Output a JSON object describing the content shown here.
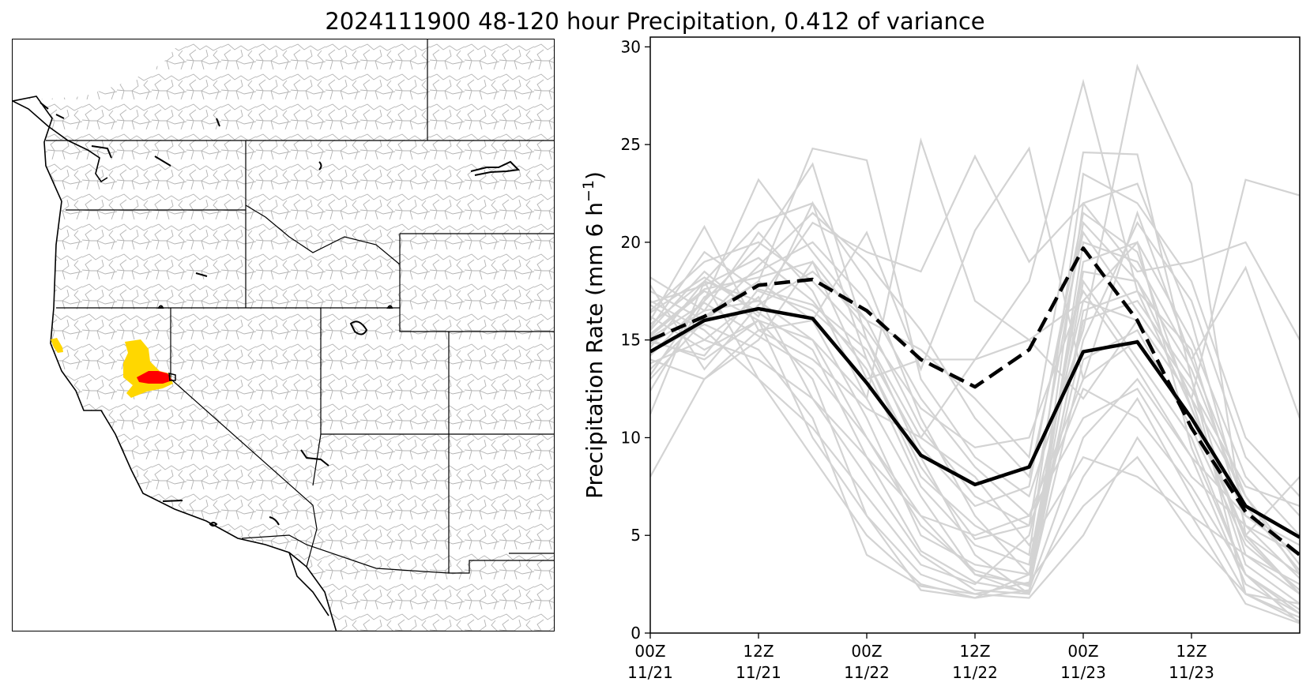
{
  "title": "2024111900 48-120 hour Precipitation, 0.412 of variance",
  "map": {
    "highlight_colors": {
      "high": "#ff0000",
      "mid": "#ffd700"
    },
    "border_color": "#000000",
    "basin_color": "#b3b3b3"
  },
  "chart_data": {
    "type": "line",
    "title": "",
    "ylabel": "Precipitation Rate (mm 6 h",
    "ylabel_exponent": "−1",
    "ylabel_close": ")",
    "ylim": [
      0,
      30.5
    ],
    "yticks": [
      0,
      5,
      10,
      15,
      20,
      25,
      30
    ],
    "x": [
      0,
      6,
      12,
      18,
      24,
      30,
      36,
      42,
      48,
      54,
      60,
      66,
      72
    ],
    "xlim": [
      0,
      72
    ],
    "xtick_positions": [
      0,
      12,
      24,
      36,
      48,
      60
    ],
    "xtick_labels": [
      [
        "00Z",
        "11/21"
      ],
      [
        "12Z",
        "11/21"
      ],
      [
        "00Z",
        "11/22"
      ],
      [
        "12Z",
        "11/22"
      ],
      [
        "00Z",
        "11/23"
      ],
      [
        "12Z",
        "11/23"
      ]
    ],
    "colors": {
      "members": "#d3d3d3",
      "highlight": "#000000"
    },
    "series": [
      {
        "style": "solid",
        "values": [
          14.4,
          16.0,
          16.6,
          16.1,
          12.8,
          9.1,
          7.6,
          8.5,
          14.4,
          14.9,
          11.0,
          6.5,
          4.9
        ]
      },
      {
        "style": "dashed",
        "values": [
          15.0,
          16.2,
          17.8,
          18.1,
          16.5,
          14.0,
          12.6,
          14.5,
          19.7,
          16.0,
          10.5,
          6.2,
          4.0
        ]
      }
    ],
    "members": [
      [
        15.5,
        18.5,
        16.2,
        22.0,
        14.0,
        8.5,
        4.8,
        5.5,
        21.0,
        18.0,
        12.0,
        7.0,
        3.0
      ],
      [
        14.2,
        17.0,
        23.2,
        19.5,
        16.0,
        14.5,
        12.0,
        9.0,
        24.6,
        24.5,
        13.0,
        2.0,
        1.5
      ],
      [
        13.5,
        16.2,
        18.0,
        24.8,
        24.2,
        13.0,
        9.0,
        7.0,
        15.5,
        29.0,
        23.0,
        5.0,
        2.0
      ],
      [
        18.2,
        16.5,
        20.5,
        17.5,
        12.0,
        25.2,
        17.0,
        15.0,
        17.0,
        20.0,
        9.5,
        3.0,
        0.5
      ],
      [
        16.0,
        20.8,
        15.5,
        16.0,
        20.5,
        13.5,
        20.6,
        24.8,
        13.0,
        21.5,
        14.0,
        18.7,
        11.0
      ],
      [
        12.4,
        17.0,
        19.8,
        24.0,
        15.0,
        10.0,
        14.0,
        18.0,
        28.2,
        17.5,
        11.5,
        5.0,
        8.0
      ],
      [
        11.2,
        18.0,
        17.0,
        21.0,
        19.5,
        18.5,
        24.4,
        19.0,
        22.0,
        18.5,
        19.0,
        20.0,
        15.0
      ],
      [
        8.0,
        13.0,
        15.0,
        19.0,
        13.0,
        14.0,
        14.0,
        15.0,
        12.0,
        16.0,
        12.0,
        23.2,
        22.4
      ],
      [
        15.0,
        14.0,
        16.0,
        15.0,
        10.0,
        6.0,
        3.0,
        2.5,
        18.0,
        14.0,
        10.0,
        3.0,
        1.0
      ],
      [
        16.8,
        15.0,
        17.2,
        12.0,
        8.0,
        4.0,
        2.2,
        2.0,
        8.0,
        12.0,
        7.0,
        2.0,
        0.6
      ],
      [
        15.2,
        17.5,
        16.0,
        10.0,
        6.0,
        3.0,
        2.0,
        1.8,
        5.0,
        10.0,
        6.0,
        1.5,
        0.5
      ],
      [
        14.6,
        18.0,
        13.0,
        9.0,
        5.0,
        2.5,
        1.8,
        2.2,
        10.0,
        13.0,
        9.0,
        2.5,
        1.0
      ],
      [
        17.5,
        16.0,
        18.0,
        16.0,
        11.0,
        5.0,
        3.5,
        3.0,
        16.0,
        17.0,
        13.0,
        4.0,
        2.0
      ],
      [
        13.8,
        15.0,
        14.0,
        12.0,
        9.0,
        6.0,
        5.0,
        6.0,
        13.0,
        15.0,
        11.0,
        5.0,
        3.0
      ],
      [
        16.5,
        19.0,
        20.0,
        18.0,
        15.0,
        9.0,
        4.0,
        2.0,
        22.0,
        23.0,
        16.0,
        6.0,
        4.0
      ],
      [
        14.0,
        13.0,
        15.5,
        14.0,
        11.5,
        10.0,
        8.0,
        4.5,
        9.0,
        8.0,
        6.0,
        4.0,
        2.5
      ],
      [
        15.8,
        18.0,
        21.0,
        22.0,
        18.0,
        11.0,
        6.0,
        3.0,
        19.0,
        20.0,
        15.0,
        8.0,
        5.0
      ],
      [
        17.0,
        15.5,
        13.0,
        10.5,
        7.0,
        3.5,
        2.5,
        5.0,
        17.0,
        16.0,
        12.0,
        3.5,
        1.5
      ],
      [
        14.8,
        16.5,
        17.0,
        15.0,
        12.0,
        7.0,
        3.0,
        2.0,
        20.0,
        19.0,
        14.0,
        7.0,
        3.5
      ],
      [
        16.2,
        14.5,
        16.0,
        13.0,
        6.0,
        2.2,
        1.8,
        3.0,
        15.0,
        21.0,
        17.0,
        9.0,
        6.0
      ],
      [
        13.2,
        17.2,
        18.5,
        20.0,
        17.0,
        12.0,
        8.5,
        6.0,
        11.0,
        12.5,
        8.0,
        5.5,
        4.0
      ],
      [
        15.6,
        19.5,
        17.5,
        16.5,
        14.0,
        8.0,
        5.5,
        4.0,
        23.5,
        22.0,
        18.0,
        10.0,
        7.0
      ],
      [
        14.4,
        15.8,
        14.5,
        11.0,
        4.0,
        2.4,
        2.0,
        2.6,
        6.5,
        9.0,
        5.0,
        2.0,
        0.8
      ],
      [
        16.9,
        17.8,
        19.2,
        17.0,
        13.5,
        7.5,
        4.5,
        3.5,
        18.5,
        18.0,
        13.5,
        6.5,
        3.2
      ],
      [
        15.1,
        16.9,
        15.2,
        13.5,
        10.0,
        5.5,
        3.2,
        2.4,
        14.0,
        15.5,
        10.5,
        4.5,
        2.2
      ],
      [
        17.8,
        13.5,
        16.8,
        18.5,
        16.0,
        10.5,
        7.0,
        5.5,
        12.5,
        11.0,
        7.5,
        3.0,
        1.2
      ],
      [
        13.0,
        16.0,
        18.8,
        21.5,
        19.0,
        15.5,
        11.0,
        8.0,
        20.5,
        16.5,
        12.5,
        7.5,
        6.5
      ],
      [
        16.4,
        18.2,
        16.4,
        14.5,
        9.0,
        4.2,
        2.6,
        2.1,
        16.5,
        17.5,
        14.5,
        5.5,
        2.8
      ],
      [
        14.9,
        14.2,
        17.6,
        16.8,
        14.5,
        9.5,
        6.5,
        7.5,
        21.5,
        19.5,
        11.5,
        4.8,
        2.0
      ],
      [
        15.3,
        17.6,
        18.2,
        19.0,
        15.5,
        11.5,
        9.5,
        10.0,
        17.5,
        13.5,
        9.0,
        6.0,
        4.5
      ]
    ]
  }
}
